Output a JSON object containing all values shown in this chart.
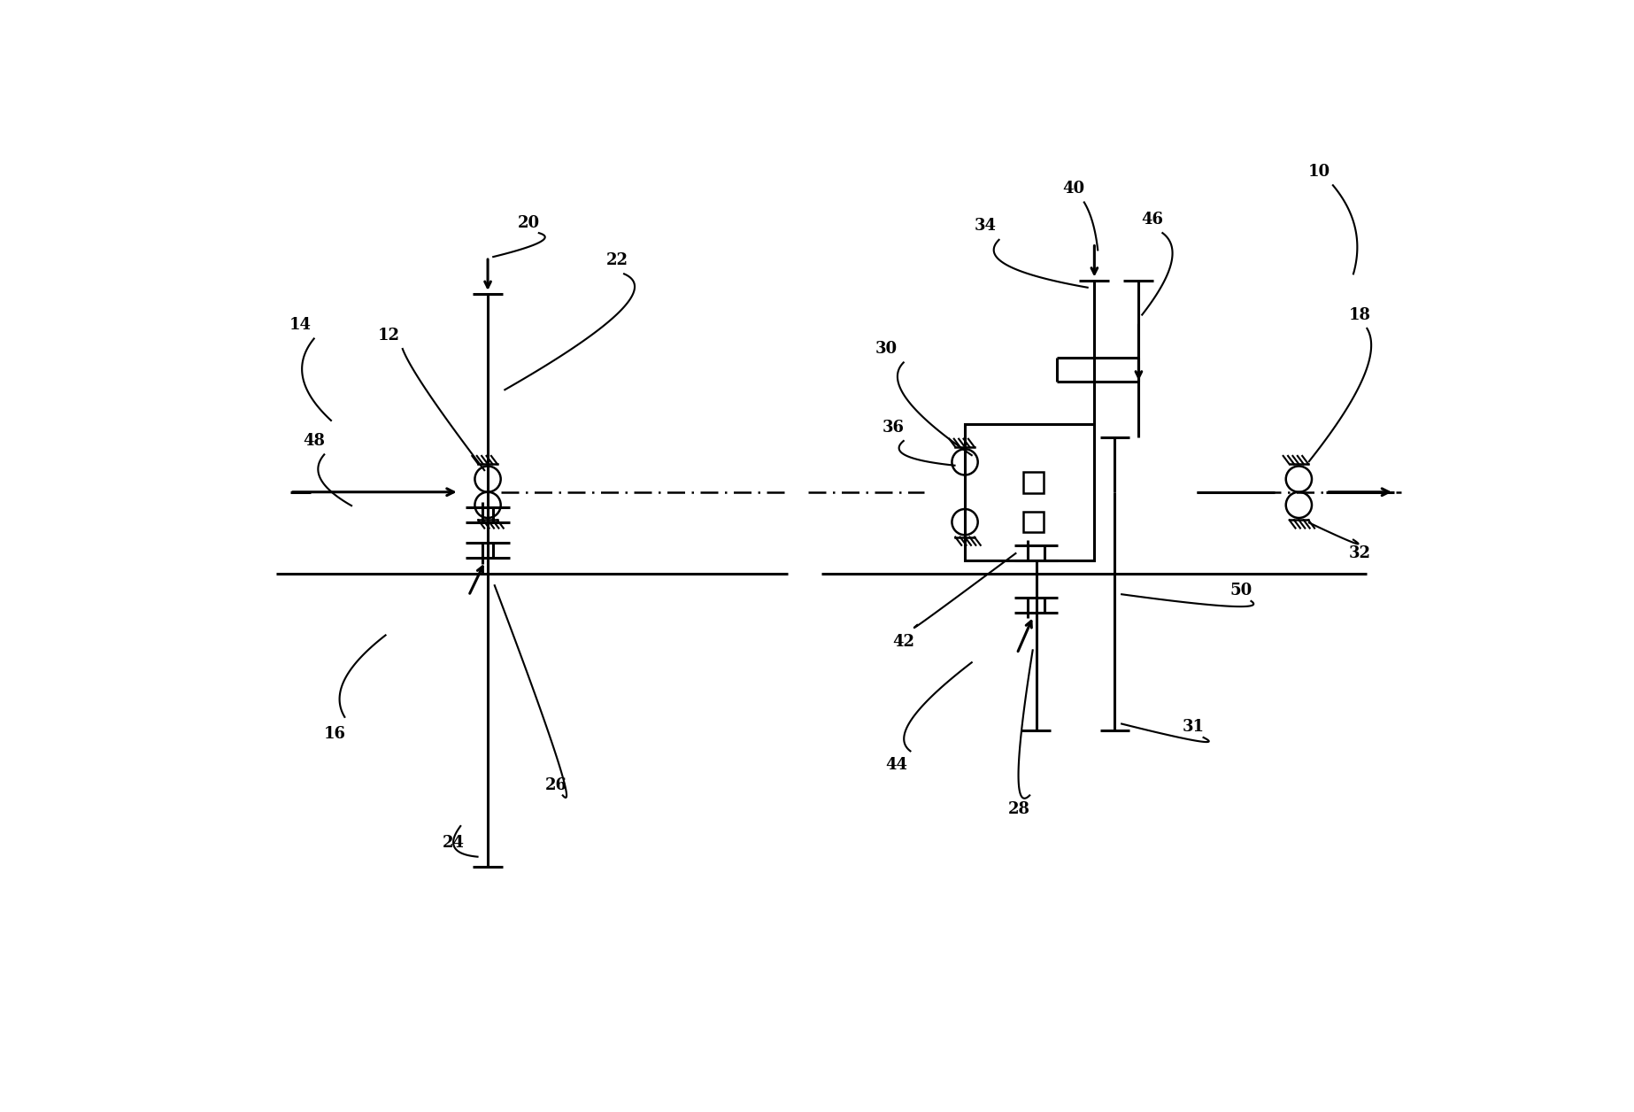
{
  "bg_color": "#ffffff",
  "line_color": "#000000",
  "fig_width": 18.46,
  "fig_height": 12.56,
  "dpi": 100
}
